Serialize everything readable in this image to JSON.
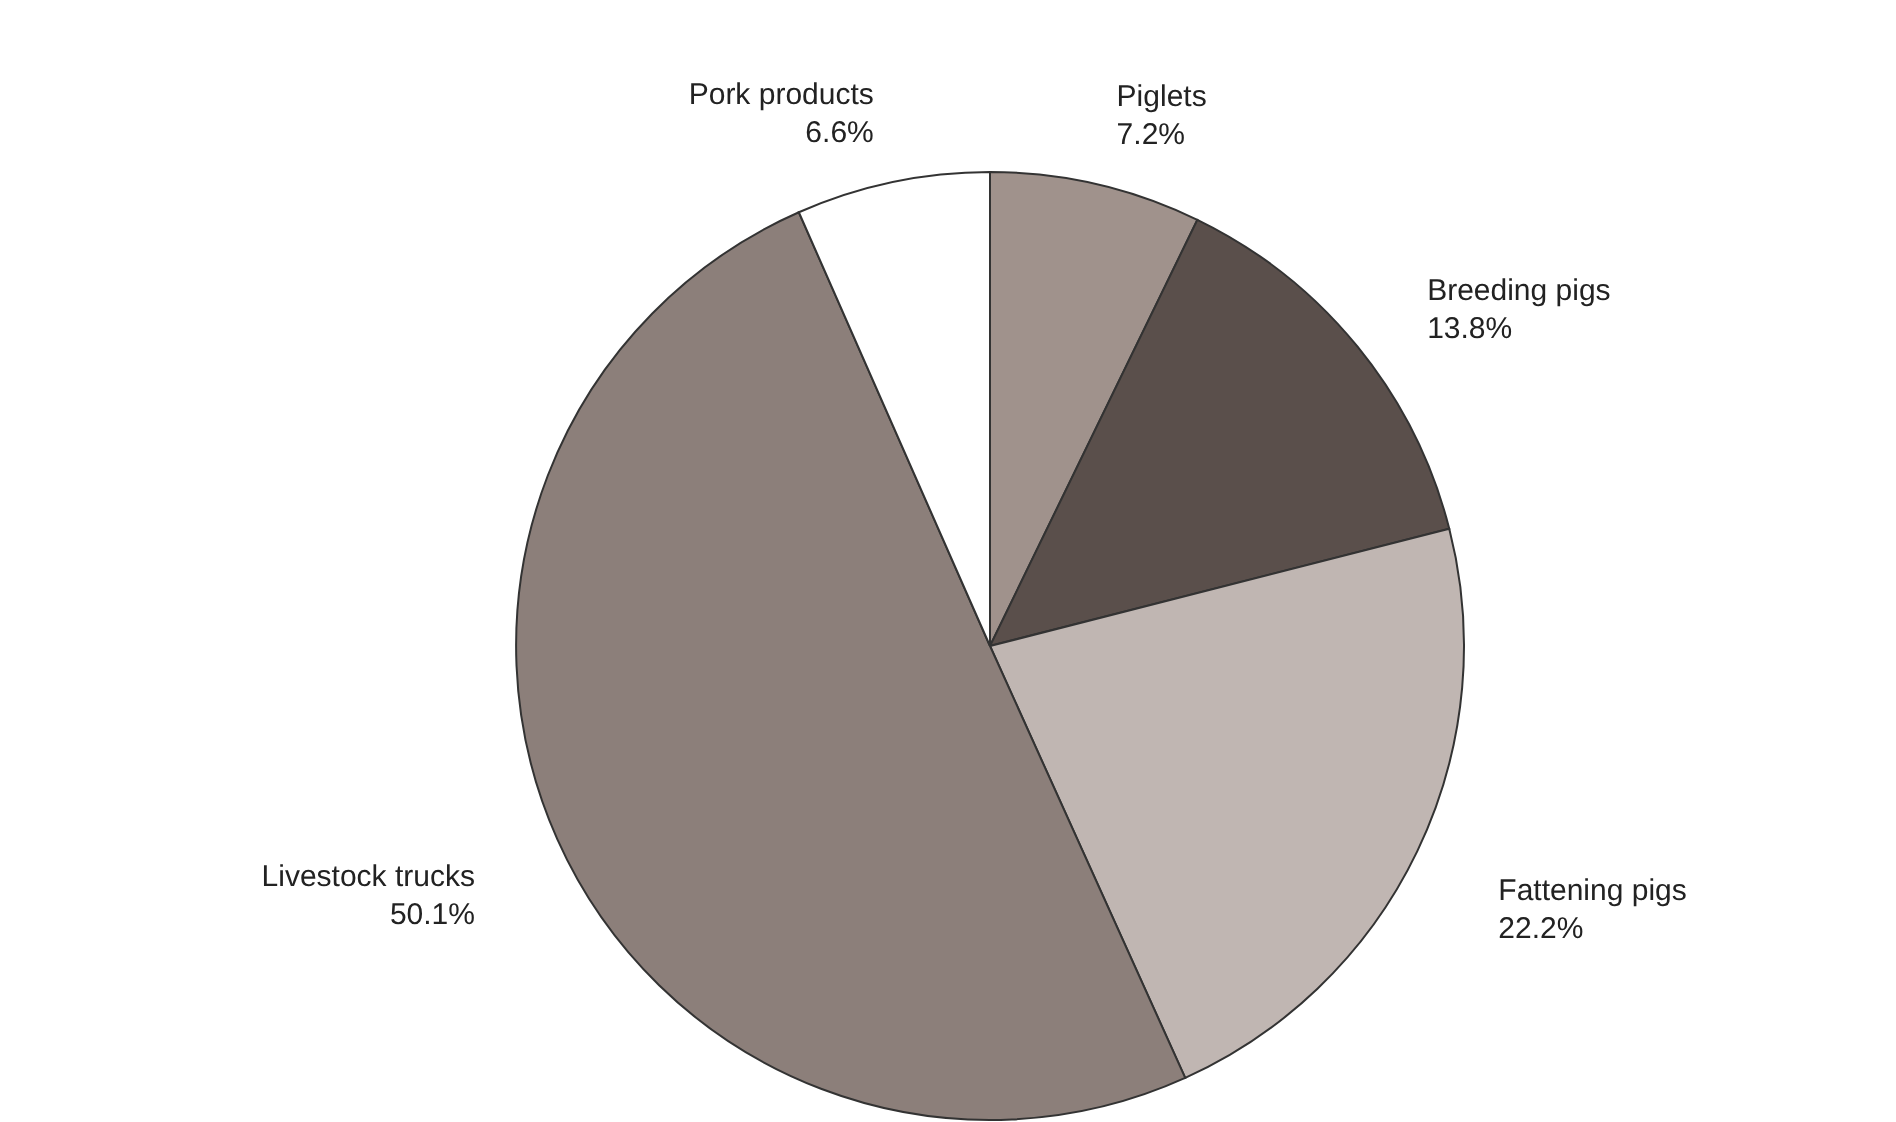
{
  "chart_data": {
    "type": "pie",
    "categories": [
      "Piglets",
      "Breeding pigs",
      "Fattening pigs",
      "Livestock trucks",
      "Pork products"
    ],
    "values": [
      7.2,
      13.8,
      22.2,
      50.1,
      6.6
    ],
    "value_labels": [
      "7.2%",
      "13.8%",
      "22.2%",
      "50.1%",
      "6.6%"
    ],
    "colors": [
      "#a0928c",
      "#5a4f4b",
      "#c0b6b2",
      "#8c7f7a",
      "#ffffff"
    ]
  }
}
